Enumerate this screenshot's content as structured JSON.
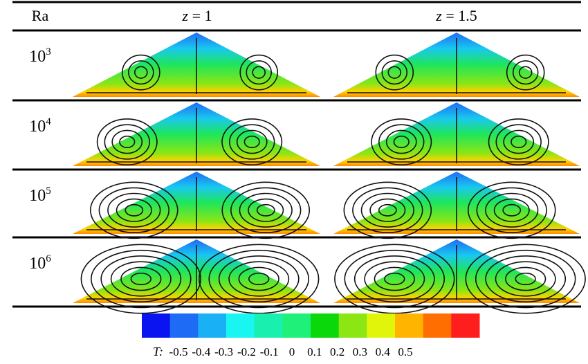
{
  "table": {
    "header": {
      "first": "Ra",
      "columns": [
        {
          "symbol": "z",
          "rest": "= 1"
        },
        {
          "symbol": "z",
          "rest": "= 1.5"
        }
      ]
    },
    "rows": [
      {
        "base": "10",
        "exponent": "3"
      },
      {
        "base": "10",
        "exponent": "4"
      },
      {
        "base": "10",
        "exponent": "5"
      },
      {
        "base": "10",
        "exponent": "6"
      }
    ]
  },
  "colorbar": {
    "label": "T:",
    "ticks": [
      -0.5,
      -0.4,
      -0.3,
      -0.2,
      -0.1,
      0,
      0.1,
      0.2,
      0.3,
      0.4,
      0.5
    ],
    "colors": [
      "#0a14f0",
      "#1e6cf5",
      "#19b0f5",
      "#19f5f0",
      "#19f0b0",
      "#1ef07a",
      "#0ad80a",
      "#8ce614",
      "#e1f50a",
      "#ffb400",
      "#ff6e00",
      "#ff1e1e"
    ]
  }
}
